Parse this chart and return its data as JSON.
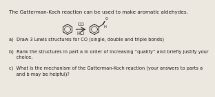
{
  "title_text": "The Gatterman-Koch reaction can be used to make aromatic aldehydes.",
  "arrow_label_top": "CO",
  "arrow_label_bottom": "HCl",
  "question_a": "a)  Draw 3 Lewis structures for CO (single, double and triple bonds)",
  "question_b": "b)  Rank the structures in part a in order of increasing “quality” and briefly justify your\n     choice.",
  "question_c": "c)  What is the mechanism of the Gatterman-Koch reaction (your answers to parts a\n     and b may be helpful)?",
  "bg_color": "#ede8df",
  "text_color": "#1a1a1a",
  "title_fontsize": 5.2,
  "body_fontsize": 4.8,
  "ring_color": "#1a1a1a"
}
